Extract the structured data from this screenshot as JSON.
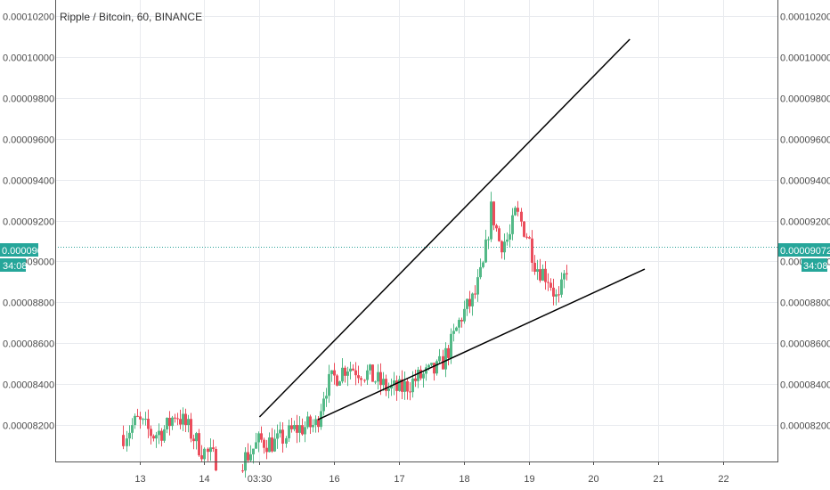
{
  "chart_data": {
    "type": "candlestick",
    "title": "Ripple / Bitcoin, 60, BINANCE",
    "y_ticks": [
      "0.00008200",
      "0.00008400",
      "0.00008600",
      "0.00008800",
      "0.00009000",
      "0.00009200",
      "0.00009400",
      "0.00009600",
      "0.00009800",
      "0.00010000",
      "0.00010200"
    ],
    "y_tick_values": [
      8.2e-05,
      8.4e-05,
      8.6e-05,
      8.8e-05,
      9e-05,
      9.2e-05,
      9.4e-05,
      9.6e-05,
      9.8e-05,
      0.0001,
      0.000102
    ],
    "ylim": [
      8.02e-05,
      0.0001028
    ],
    "x_ticks": [
      {
        "label": "13",
        "t": 13.0
      },
      {
        "label": "14",
        "t": 14.0
      },
      {
        "label": "03:30",
        "t": 14.84
      },
      {
        "label": "16",
        "t": 16.0
      },
      {
        "label": "17",
        "t": 17.0
      },
      {
        "label": "18",
        "t": 18.0
      },
      {
        "label": "19",
        "t": 19.0
      },
      {
        "label": "20",
        "t": 20.0
      },
      {
        "label": "21",
        "t": 21.0
      },
      {
        "label": "22",
        "t": 22.0
      }
    ],
    "x_range": [
      11.7,
      22.85
    ],
    "current_price": "0.00009072",
    "current_value": 9.072e-05,
    "countdown": "34:08",
    "trendlines": [
      {
        "name": "upper",
        "points": [
          [
            14.85,
            8.238e-05
          ],
          [
            20.56,
            0.00010088
          ]
        ]
      },
      {
        "name": "lower",
        "points": [
          [
            15.75,
            8.225e-05
          ],
          [
            20.79,
            8.962e-05
          ]
        ]
      }
    ],
    "anchors": [
      [
        12.75,
        8.15e-05
      ],
      [
        12.95,
        8.22e-05
      ],
      [
        13.2,
        8.15e-05
      ],
      [
        13.4,
        8.18e-05
      ],
      [
        13.55,
        8.26e-05
      ],
      [
        13.75,
        8.18e-05
      ],
      [
        13.95,
        8.08e-05
      ],
      [
        14.15,
        8.03e-05
      ],
      [
        14.6,
        8.03e-05
      ],
      [
        14.85,
        8.12e-05
      ],
      [
        15.1,
        8.11e-05
      ],
      [
        15.4,
        8.18e-05
      ],
      [
        15.72,
        8.2e-05
      ],
      [
        15.85,
        8.38e-05
      ],
      [
        16.0,
        8.43e-05
      ],
      [
        16.2,
        8.49e-05
      ],
      [
        16.5,
        8.45e-05
      ],
      [
        16.8,
        8.38e-05
      ],
      [
        17.0,
        8.37e-05
      ],
      [
        17.3,
        8.43e-05
      ],
      [
        17.6,
        8.47e-05
      ],
      [
        17.8,
        8.6e-05
      ],
      [
        17.95,
        8.73e-05
      ],
      [
        18.15,
        8.82e-05
      ],
      [
        18.3,
        8.98e-05
      ],
      [
        18.42,
        9.26e-05
      ],
      [
        18.55,
        9.09e-05
      ],
      [
        18.7,
        9.11e-05
      ],
      [
        18.8,
        9.24e-05
      ],
      [
        18.98,
        9.12e-05
      ],
      [
        19.1,
        8.98e-05
      ],
      [
        19.3,
        8.92e-05
      ],
      [
        19.45,
        8.79e-05
      ],
      [
        19.6,
        9e-05
      ],
      [
        19.62,
        9.07e-05
      ]
    ]
  },
  "colors": {
    "up": "#53b987",
    "down": "#eb4d5c",
    "trendline": "#000000",
    "price_line": "#2aa198",
    "badge": "#26a69a",
    "grid": "#e9ebef",
    "axis": "#555555"
  }
}
